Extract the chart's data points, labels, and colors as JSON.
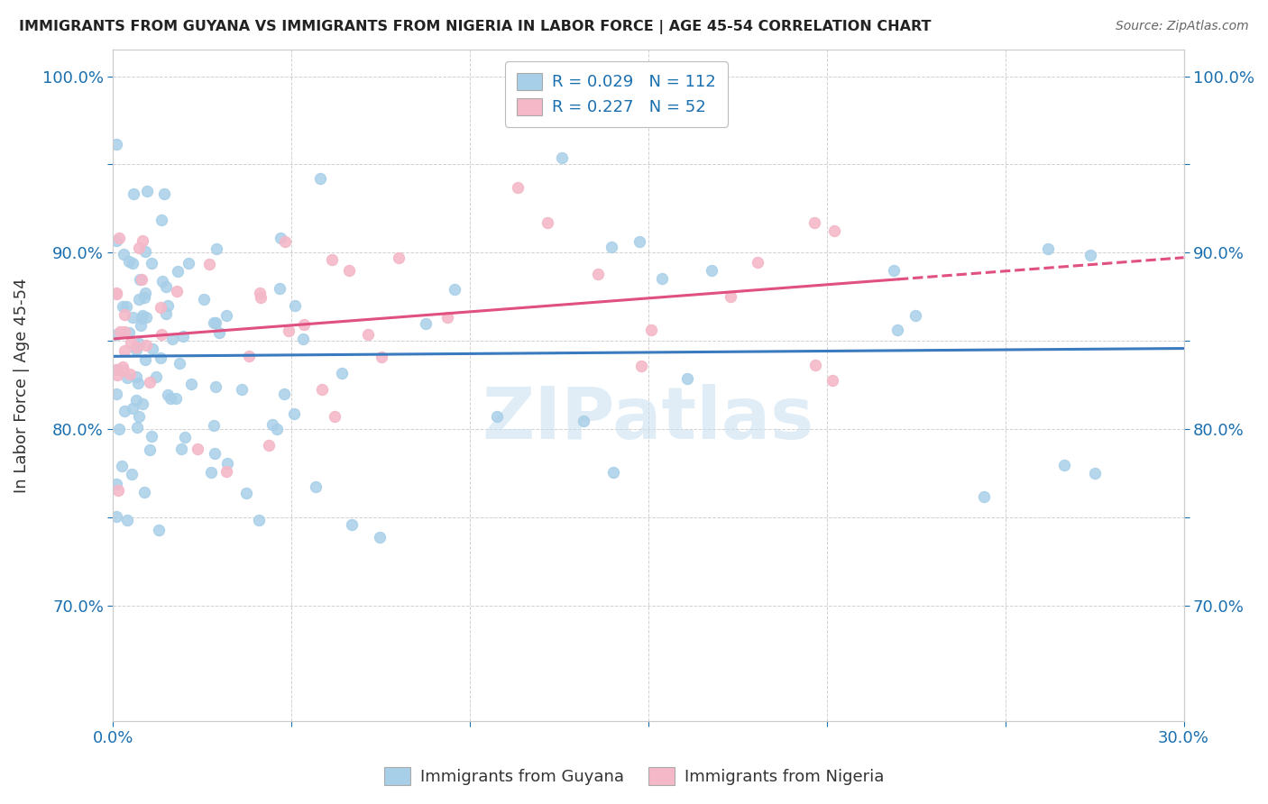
{
  "title": "IMMIGRANTS FROM GUYANA VS IMMIGRANTS FROM NIGERIA IN LABOR FORCE | AGE 45-54 CORRELATION CHART",
  "source": "Source: ZipAtlas.com",
  "ylabel": "In Labor Force | Age 45-54",
  "xlim": [
    0.0,
    0.3
  ],
  "ylim": [
    0.635,
    1.015
  ],
  "guyana_color": "#a8cfe8",
  "nigeria_color": "#f4b8c8",
  "guyana_R": 0.029,
  "guyana_N": 112,
  "nigeria_R": 0.227,
  "nigeria_N": 52,
  "trend_guyana_color": "#3a7abf",
  "trend_nigeria_color": "#e05080",
  "watermark": "ZIPatlas",
  "background_color": "#ffffff",
  "grid_color": "#cccccc"
}
